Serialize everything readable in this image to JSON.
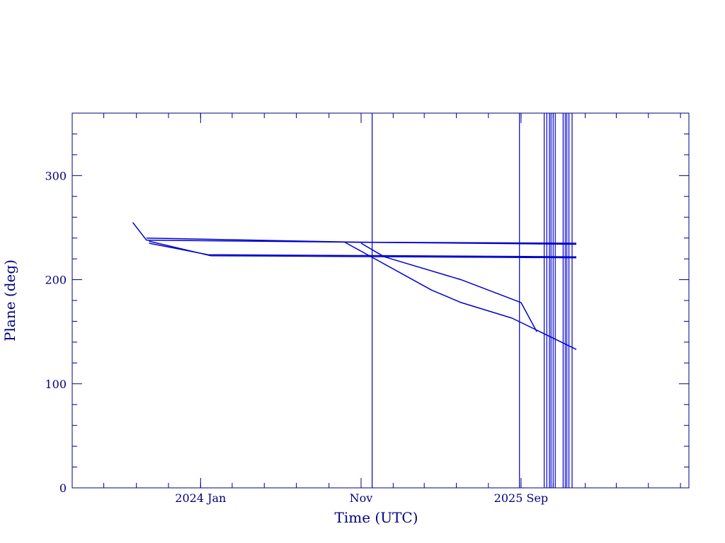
{
  "chart_data": {
    "type": "line",
    "title": "",
    "xlabel": "Time (UTC)",
    "ylabel": "Plane (deg)",
    "xlim": [
      "2023-05-02",
      "2026-07-17"
    ],
    "ylim": [
      0,
      360
    ],
    "x_ticks": [
      {
        "value": "2024-01-01",
        "label": "2024 Jan"
      },
      {
        "value": "2024-11-01",
        "label": "Nov"
      },
      {
        "value": "2025-09-01",
        "label": "2025 Sep"
      }
    ],
    "y_ticks": [
      {
        "value": 0,
        "label": "0"
      },
      {
        "value": 100,
        "label": "100"
      },
      {
        "value": 200,
        "label": "200"
      },
      {
        "value": 300,
        "label": "300"
      }
    ],
    "grid": false,
    "colors": {
      "axis": "#000080",
      "line": "#0000cc"
    },
    "series": [
      {
        "x": [
          "2023-08-25",
          "2023-09-20",
          "2024-11-01",
          "2025-12-15"
        ],
        "y": [
          255,
          238,
          236,
          235
        ]
      },
      {
        "x": [
          "2023-09-20",
          "2024-11-01",
          "2025-12-15"
        ],
        "y": [
          240,
          236,
          234
        ]
      },
      {
        "x": [
          "2023-09-25",
          "2024-01-15",
          "2025-12-15"
        ],
        "y": [
          235,
          224,
          222
        ]
      },
      {
        "x": [
          "2023-09-25",
          "2024-01-20",
          "2025-12-15"
        ],
        "y": [
          237,
          223,
          221
        ]
      },
      {
        "x": [
          "2024-11-01",
          "2024-12-15",
          "2025-05-10",
          "2025-09-01",
          "2025-10-01"
        ],
        "y": [
          235,
          222,
          200,
          178,
          150
        ]
      },
      {
        "x": [
          "2024-10-01",
          "2025-03-15",
          "2025-05-10",
          "2025-08-15",
          "2025-12-15"
        ],
        "y": [
          236,
          190,
          178,
          163,
          133
        ]
      }
    ],
    "vertical_lines": [
      "2024-11-22",
      "2025-08-29",
      "2025-10-15",
      "2025-10-20",
      "2025-10-25",
      "2025-10-28",
      "2025-11-01",
      "2025-11-05",
      "2025-11-20",
      "2025-11-24",
      "2025-11-27",
      "2025-12-01",
      "2025-12-07"
    ]
  }
}
